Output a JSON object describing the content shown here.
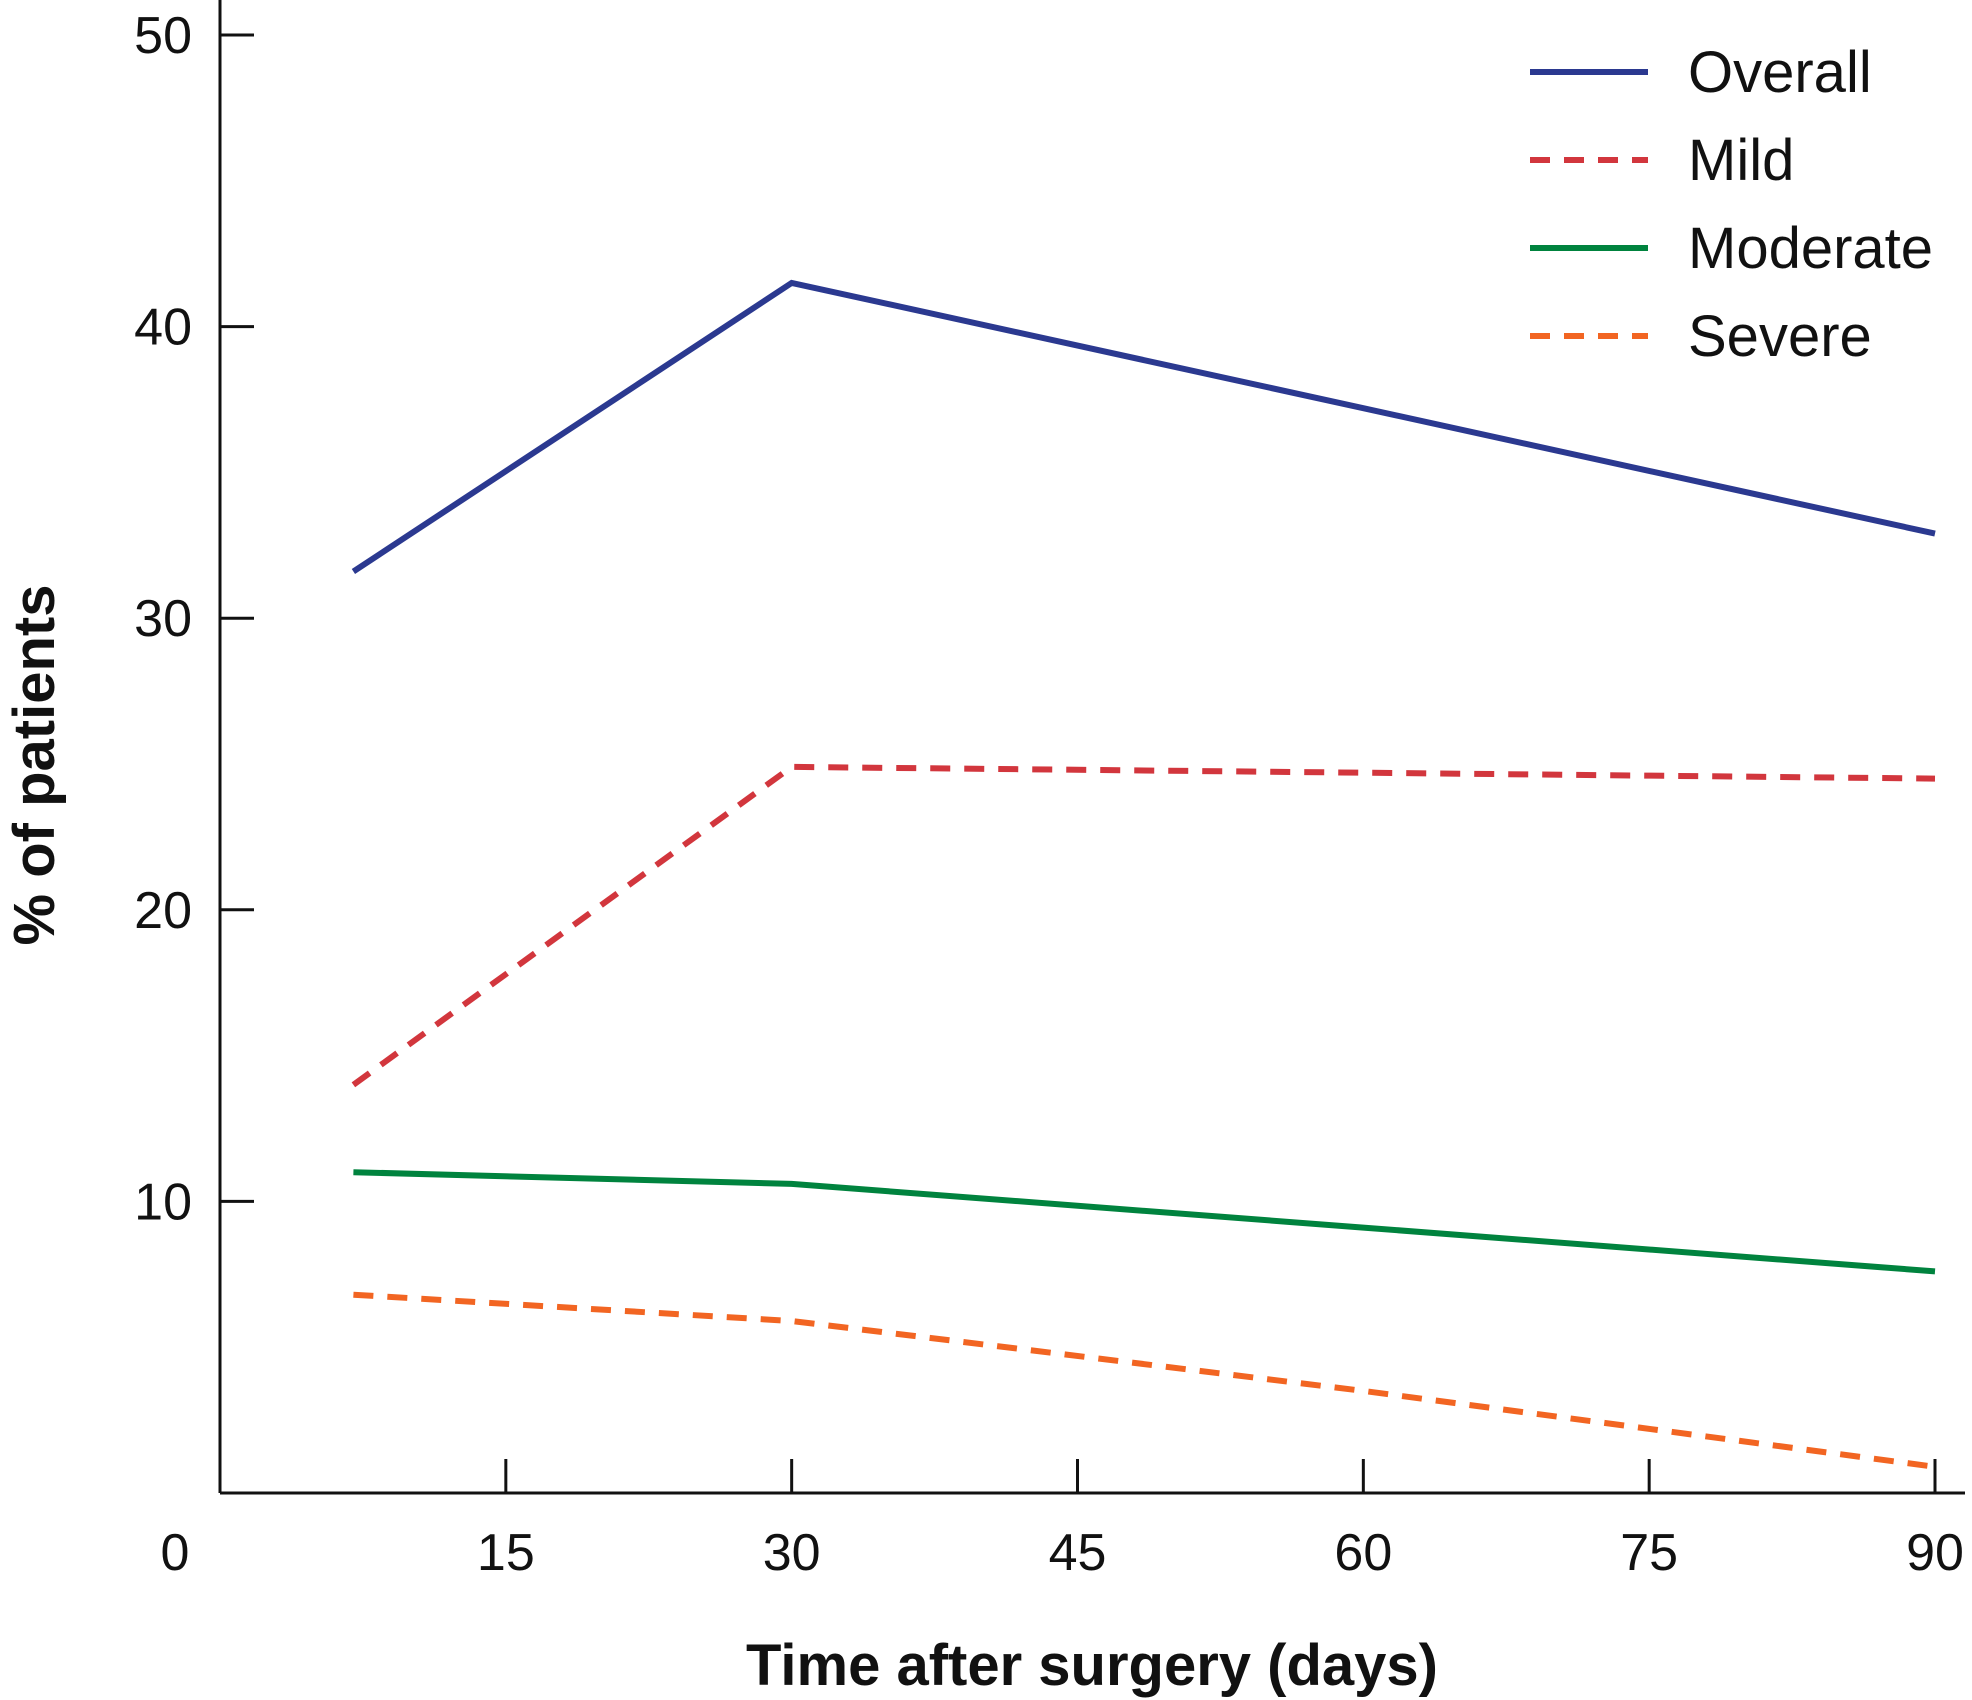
{
  "chart_data": {
    "type": "line",
    "title": "",
    "xlabel": "Time after surgery (days)",
    "ylabel": "% of patients",
    "xlim": [
      0,
      90
    ],
    "ylim": [
      0,
      50
    ],
    "x_ticks": [
      15,
      30,
      45,
      60,
      75,
      90
    ],
    "x_tick_labels": [
      "15",
      "30",
      "45",
      "60",
      "75",
      "90"
    ],
    "y_ticks": [
      10,
      20,
      30,
      40,
      50
    ],
    "y_tick_labels": [
      "10",
      "20",
      "30",
      "40",
      "50"
    ],
    "origin_label": "0",
    "grid": false,
    "legend_position": "top-right",
    "series": [
      {
        "name": "Overall",
        "color": "#2b3990",
        "dash": "solid",
        "points": [
          [
            7,
            31.6
          ],
          [
            30,
            41.5
          ],
          [
            60,
            37.2
          ],
          [
            90,
            32.9
          ]
        ]
      },
      {
        "name": "Mild",
        "color": "#d2363d",
        "dash": "dashed",
        "points": [
          [
            7,
            14.0
          ],
          [
            30,
            24.9
          ],
          [
            60,
            24.7
          ],
          [
            90,
            24.5
          ]
        ]
      },
      {
        "name": "Moderate",
        "color": "#00833e",
        "dash": "solid",
        "points": [
          [
            7,
            11.0
          ],
          [
            30,
            10.6
          ],
          [
            60,
            9.1
          ],
          [
            90,
            7.6
          ]
        ]
      },
      {
        "name": "Severe",
        "color": "#f26522",
        "dash": "dashed",
        "points": [
          [
            7,
            6.8
          ],
          [
            30,
            5.9
          ],
          [
            60,
            3.5
          ],
          [
            90,
            0.9
          ]
        ]
      }
    ]
  }
}
